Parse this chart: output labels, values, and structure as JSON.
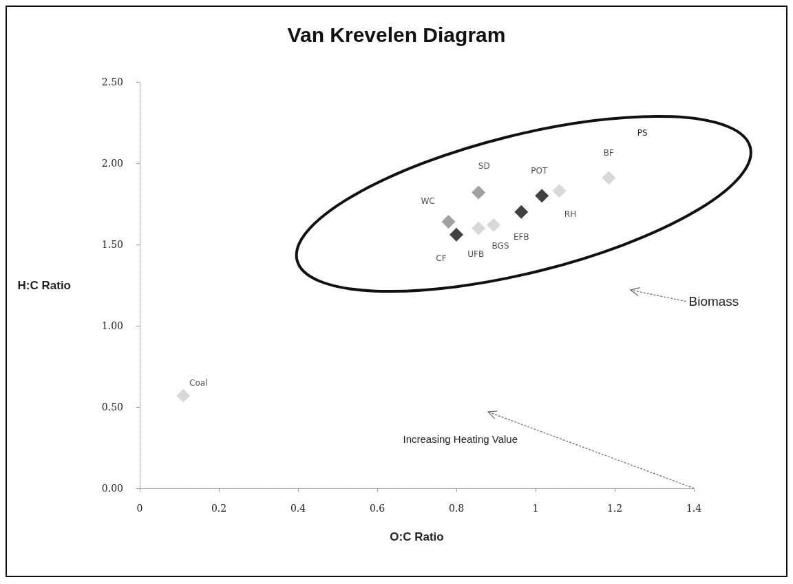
{
  "chart_data": {
    "type": "scatter",
    "title": "Van Krevelen Diagram",
    "xlabel": "O:C Ratio",
    "ylabel": "H:C Ratio",
    "series": [
      {
        "color": "#888888",
        "x": [
          0.856,
          0.78
        ],
        "values": [
          1.82,
          1.64
        ]
      },
      {
        "color": "#111111",
        "x": [
          0.8,
          0.964,
          1.016
        ],
        "values": [
          1.56,
          1.7,
          1.8
        ]
      },
      {
        "color": "#cfcfcf",
        "x": [
          0.856,
          0.894,
          1.06,
          1.185,
          0.11
        ],
        "values": [
          1.6,
          1.62,
          1.83,
          1.91,
          0.57
        ]
      }
    ],
    "xlim": [
      0,
      1.4
    ],
    "xticks": [
      0,
      0.2,
      0.4,
      0.6,
      0.8,
      1,
      1.2,
      1.4
    ],
    "ylim": [
      0,
      2.5
    ],
    "yticks": [
      {
        "value": 0,
        "label": "0.00"
      },
      {
        "value": 0.5,
        "label": "0.50"
      },
      {
        "value": 1,
        "label": "1.00"
      },
      {
        "value": 1.5,
        "label": "1.50"
      },
      {
        "value": 2,
        "label": "2.00"
      },
      {
        "value": 2.5,
        "label": "2.50"
      }
    ],
    "marker": "diamond",
    "grid": false,
    "annotations": [
      {
        "text": "SD",
        "x": 0.856,
        "y": 1.82
      },
      {
        "text": "WC",
        "x": 0.78,
        "y": 1.64
      },
      {
        "text": "CF",
        "x": 0.8,
        "y": 1.56
      },
      {
        "text": "UFB",
        "x": 0.856,
        "y": 1.6
      },
      {
        "text": "BGS",
        "x": 0.894,
        "y": 1.62
      },
      {
        "text": "EFB",
        "x": 0.964,
        "y": 1.7
      },
      {
        "text": "POT",
        "x": 1.016,
        "y": 1.8
      },
      {
        "text": "RH",
        "x": 1.06,
        "y": 1.83
      },
      {
        "text": "BF",
        "x": 1.185,
        "y": 1.91
      },
      {
        "text": "Coal",
        "x": 0.11,
        "y": 0.57
      },
      "PS",
      "Biomass",
      "Increasing Heating Value"
    ]
  }
}
